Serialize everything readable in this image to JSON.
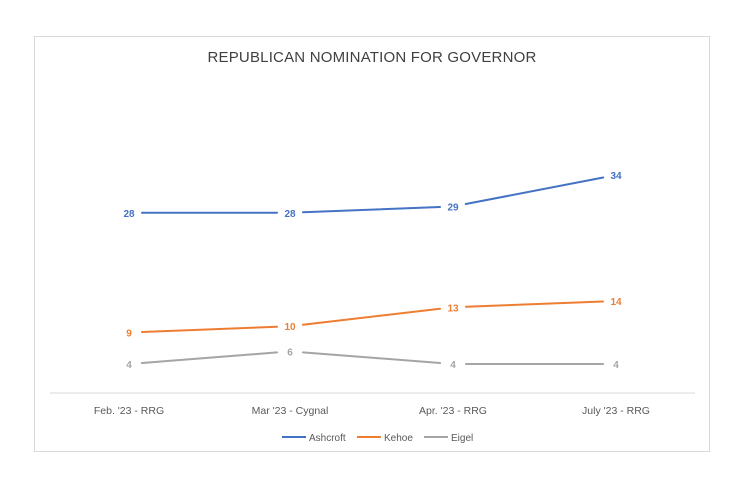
{
  "chart_data": {
    "type": "line",
    "title": "REPUBLICAN NOMINATION FOR GOVERNOR",
    "categories": [
      "Feb. '23 - RRG",
      "Mar '23 - Cygnal",
      "Apr. '23 - RRG",
      "July '23 - RRG"
    ],
    "series": [
      {
        "name": "Ashcroft",
        "values": [
          28,
          28,
          29,
          34
        ],
        "color": "#4472C4"
      },
      {
        "name": "Kehoe",
        "values": [
          9,
          10,
          13,
          14
        ],
        "color": "#ED7D31"
      },
      {
        "name": "Eigel",
        "values": [
          4,
          6,
          4,
          4
        ],
        "color": "#A5A5A5"
      }
    ],
    "data_labels": true,
    "grid": false,
    "y_axis_visible": false,
    "legend": "bottom"
  }
}
